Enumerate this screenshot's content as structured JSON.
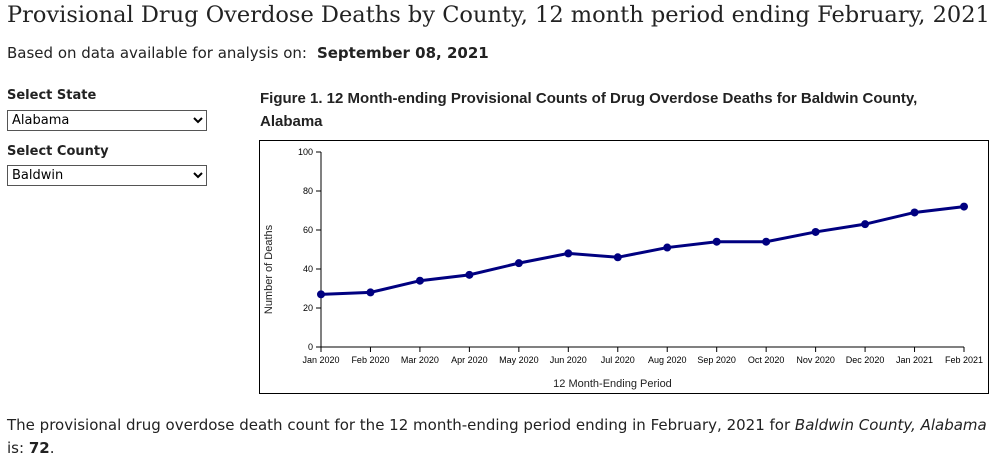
{
  "page": {
    "title": "Provisional Drug Overdose Deaths by County, 12 month period ending February, 2021",
    "avail_label": "Based on data available for analysis on:",
    "avail_date": "September 08, 2021"
  },
  "filters": {
    "state_label": "Select State",
    "state_value": "Alabama",
    "county_label": "Select County",
    "county_value": "Baldwin"
  },
  "figure": {
    "title": "Figure 1. 12 Month-ending Provisional Counts of Drug Overdose Deaths for Baldwin County, Alabama"
  },
  "chart_data": {
    "type": "line",
    "xlabel": "12 Month-Ending Period",
    "ylabel": "Number of Deaths",
    "ylim": [
      0,
      100
    ],
    "yticks": [
      0,
      20,
      40,
      60,
      80,
      100
    ],
    "categories": [
      "Jan 2020",
      "Feb 2020",
      "Mar 2020",
      "Apr 2020",
      "May 2020",
      "Jun 2020",
      "Jul 2020",
      "Aug 2020",
      "Sep 2020",
      "Oct 2020",
      "Nov 2020",
      "Dec 2020",
      "Jan 2021",
      "Feb 2021"
    ],
    "values": [
      27,
      28,
      34,
      37,
      43,
      48,
      46,
      51,
      54,
      54,
      59,
      63,
      69,
      72
    ],
    "color": "#000080",
    "grid": false
  },
  "footer": {
    "pre": "The provisional drug overdose death count for the 12 month-ending period ending in February, 2021 for ",
    "place": "Baldwin County, Alabama",
    "mid": " is: ",
    "count": "72",
    "end": "."
  }
}
